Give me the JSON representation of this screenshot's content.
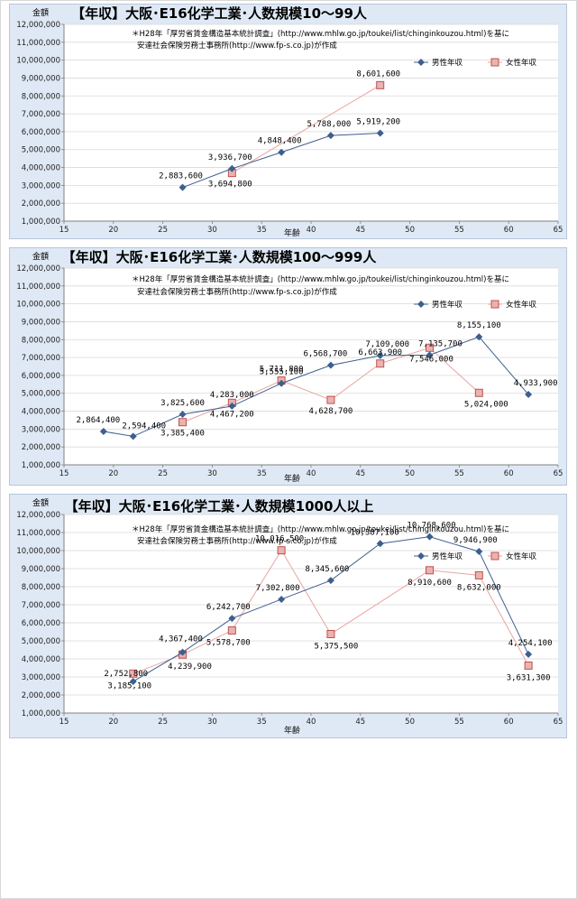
{
  "chart_data": [
    {
      "type": "line",
      "title": "【年収】大阪･E16化学工業･人数規模10～99人",
      "note_line1": "＊H28年「厚労省賃金構造基本統計調査」(http://www.mhlw.go.jp/toukei/list/chinginkouzou.html)を基に",
      "note_line2": "安達社会保険労務士事務所(http://www.fp-s.co.jp)が作成",
      "xlabel": "年齢",
      "ylabel": "金額",
      "xlim": [
        15,
        65
      ],
      "ylim": [
        1000000,
        12000000
      ],
      "x_ticks": [
        "15",
        "20",
        "25",
        "30",
        "35",
        "40",
        "45",
        "50",
        "55",
        "60",
        "65"
      ],
      "y_ticks": [
        "1,000,000",
        "2,000,000",
        "3,000,000",
        "4,000,000",
        "5,000,000",
        "6,000,000",
        "7,000,000",
        "8,000,000",
        "9,000,000",
        "10,000,000",
        "11,000,000",
        "12,000,000"
      ],
      "legend_position": "top-right",
      "series": [
        {
          "name": "男性年収",
          "color": "#3d5f8f",
          "marker": "diamond",
          "x": [
            27,
            32,
            37,
            42,
            47
          ],
          "y": [
            2883600,
            3936700,
            4848400,
            5788000,
            5919200
          ],
          "labels": [
            "2,883,600",
            "3,936,700",
            "4,848,400",
            "5,788,000",
            "5,919,200"
          ]
        },
        {
          "name": "女性年収",
          "color": "#c0504d",
          "marker": "square",
          "x": [
            32,
            47
          ],
          "y": [
            3694800,
            8601600
          ],
          "labels": [
            "3,694,800",
            "8,601,600"
          ]
        }
      ]
    },
    {
      "type": "line",
      "title": "【年収】大阪･E16化学工業･人数規模100～999人",
      "note_line1": "＊H28年「厚労省賃金構造基本統計調査」(http://www.mhlw.go.jp/toukei/list/chinginkouzou.html)を基に",
      "note_line2": "安達社会保険労務士事務所(http://www.fp-s.co.jp)が作成",
      "xlabel": "年齢",
      "ylabel": "金額",
      "xlim": [
        15,
        65
      ],
      "ylim": [
        1000000,
        12000000
      ],
      "x_ticks": [
        "15",
        "20",
        "25",
        "30",
        "35",
        "40",
        "45",
        "50",
        "55",
        "60",
        "65"
      ],
      "y_ticks": [
        "1,000,000",
        "2,000,000",
        "3,000,000",
        "4,000,000",
        "5,000,000",
        "6,000,000",
        "7,000,000",
        "8,000,000",
        "9,000,000",
        "10,000,000",
        "11,000,000",
        "12,000,000"
      ],
      "legend_position": "top-right",
      "series": [
        {
          "name": "男性年収",
          "color": "#3d5f8f",
          "marker": "diamond",
          "x": [
            19,
            22,
            27,
            32,
            37,
            42,
            47,
            52,
            57,
            62
          ],
          "y": [
            2864400,
            2594400,
            3825600,
            4283000,
            5555100,
            6568700,
            7109000,
            7135700,
            8155100,
            4933900
          ],
          "labels": [
            "2,864,400",
            "2,594,400",
            "3,825,600",
            "4,283,000",
            "5,555,100",
            "6,568,700",
            "7,109,000",
            "7,135,700",
            "8,155,100",
            "4,933,900"
          ]
        },
        {
          "name": "女性年収",
          "color": "#c0504d",
          "marker": "square",
          "x": [
            27,
            32,
            37,
            42,
            47,
            52,
            57
          ],
          "y": [
            3385400,
            4467200,
            5711800,
            4628700,
            6663900,
            7546000,
            5024000
          ],
          "labels": [
            "3,385,400",
            "4,467,200",
            "5,711,800",
            "4,628,700",
            "6,663,900",
            "7,546,000",
            "5,024,000"
          ]
        }
      ]
    },
    {
      "type": "line",
      "title": "【年収】大阪･E16化学工業･人数規模1000人以上",
      "note_line1": "＊H28年「厚労省賃金構造基本統計調査」(http://www.mhlw.go.jp/toukei/list/chinginkouzou.html)を基に",
      "note_line2": "安達社会保険労務士事務所(http://www.fp-s.co.jp)が作成",
      "xlabel": "年齢",
      "ylabel": "金額",
      "xlim": [
        15,
        65
      ],
      "ylim": [
        1000000,
        12000000
      ],
      "x_ticks": [
        "15",
        "20",
        "25",
        "30",
        "35",
        "40",
        "45",
        "50",
        "55",
        "60",
        "65"
      ],
      "y_ticks": [
        "1,000,000",
        "2,000,000",
        "3,000,000",
        "4,000,000",
        "5,000,000",
        "6,000,000",
        "7,000,000",
        "8,000,000",
        "9,000,000",
        "10,000,000",
        "11,000,000",
        "12,000,000"
      ],
      "legend_position": "top-right",
      "series": [
        {
          "name": "男性年収",
          "color": "#3d5f8f",
          "marker": "diamond",
          "x": [
            22,
            27,
            32,
            37,
            42,
            47,
            52,
            57,
            62
          ],
          "y": [
            2752800,
            4367400,
            6242700,
            7302800,
            8345600,
            10387100,
            10768600,
            9946900,
            4254100
          ],
          "labels": [
            "2,752,800",
            "4,367,400",
            "6,242,700",
            "7,302,800",
            "8,345,600",
            "10,387,100",
            "10,768,600",
            "9,946,900",
            "4,254,100"
          ]
        },
        {
          "name": "女性年収",
          "color": "#c0504d",
          "marker": "square",
          "x": [
            22,
            27,
            32,
            37,
            42,
            52,
            57,
            62
          ],
          "y": [
            3185100,
            4239900,
            5578700,
            10016500,
            5375500,
            8910600,
            8632000,
            3631300
          ],
          "labels": [
            "3,185,100",
            "4,239,900",
            "5,578,700",
            "10,016,500",
            "5,375,500",
            "8,910,600",
            "8,632,000",
            "3,631,300"
          ]
        }
      ]
    }
  ]
}
